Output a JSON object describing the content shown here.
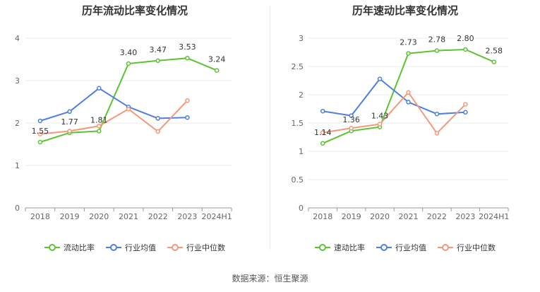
{
  "colors": {
    "company": "#5cc433",
    "avg": "#4f7fe0",
    "median": "#f4997a"
  },
  "chart_data": [
    {
      "type": "line",
      "title": "历年流动比率变化情况",
      "categories": [
        "2018",
        "2019",
        "2020",
        "2021",
        "2022",
        "2023",
        "2024H1"
      ],
      "ylim": [
        0,
        4
      ],
      "yticks": [
        "0",
        "1",
        "2",
        "3",
        "4"
      ],
      "series": [
        {
          "name": "流动比率",
          "values": [
            1.55,
            1.77,
            1.81,
            3.4,
            3.47,
            3.53,
            3.24
          ],
          "labels": [
            "1.55",
            "1.77",
            "1.81",
            "3.40",
            "3.47",
            "3.53",
            "3.24"
          ]
        },
        {
          "name": "行业均值",
          "values": [
            2.05,
            2.27,
            2.82,
            2.38,
            2.11,
            2.13,
            null
          ]
        },
        {
          "name": "行业中位数",
          "values": [
            1.74,
            1.81,
            1.93,
            2.33,
            1.8,
            2.53,
            null
          ]
        }
      ]
    },
    {
      "type": "line",
      "title": "历年速动比率变化情况",
      "categories": [
        "2018",
        "2019",
        "2020",
        "2021",
        "2022",
        "2023",
        "2024H1"
      ],
      "ylim": [
        0,
        3
      ],
      "yticks": [
        "0",
        "0.5",
        "1",
        "1.5",
        "2",
        "2.5",
        "3"
      ],
      "series": [
        {
          "name": "速动比率",
          "values": [
            1.14,
            1.36,
            1.43,
            2.73,
            2.78,
            2.8,
            2.58
          ],
          "labels": [
            "1.14",
            "1.36",
            "1.43",
            "2.73",
            "2.78",
            "2.80",
            "2.58"
          ]
        },
        {
          "name": "行业均值",
          "values": [
            1.71,
            1.63,
            2.28,
            1.87,
            1.66,
            1.69,
            null
          ]
        },
        {
          "name": "行业中位数",
          "values": [
            1.33,
            1.41,
            1.48,
            2.04,
            1.32,
            1.83,
            null
          ]
        }
      ]
    }
  ],
  "source_text": "数据来源：恒生聚源"
}
